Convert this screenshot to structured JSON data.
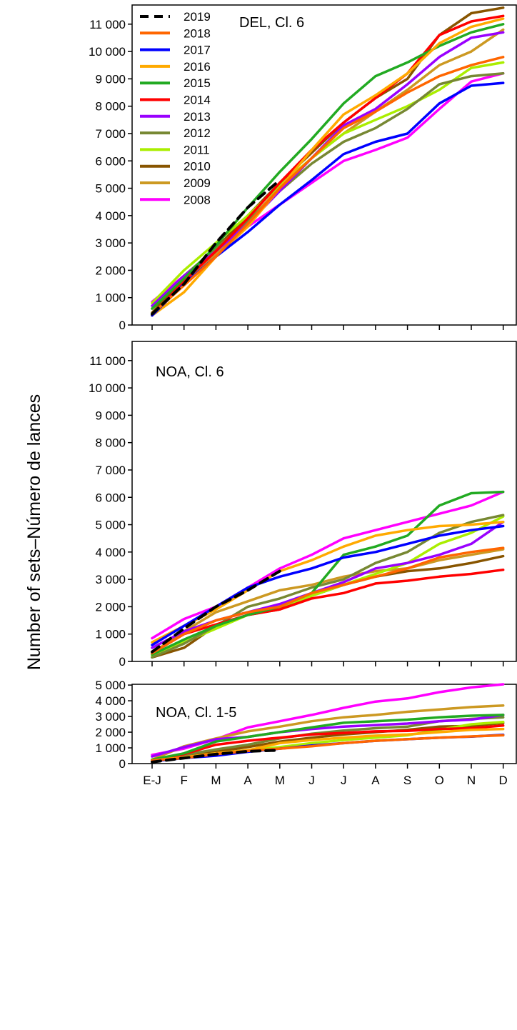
{
  "ylabel": "Number of sets–Número de lances",
  "months": [
    "E-J",
    "F",
    "M",
    "A",
    "M",
    "J",
    "J",
    "A",
    "S",
    "O",
    "N",
    "D"
  ],
  "legend": {
    "placement": "top-left of first panel"
  },
  "chart_data": [
    {
      "type": "line",
      "title": "DEL, Cl. 6",
      "ylim": [
        0,
        11700
      ],
      "yticks": [
        0,
        1000,
        2000,
        3000,
        4000,
        5000,
        6000,
        7000,
        8000,
        9000,
        10000,
        11000
      ],
      "ytick_labels": [
        "0",
        "1 000",
        "2 000",
        "3 000",
        "4 000",
        "5 000",
        "6 000",
        "7 000",
        "8 000",
        "9 000",
        "10 000",
        "11 000"
      ],
      "series": [
        {
          "name": "2019",
          "color": "#000000",
          "dash": true,
          "values": [
            400,
            1500,
            3000,
            4300,
            5300
          ]
        },
        {
          "name": "2018",
          "color": "#FF6600",
          "values": [
            400,
            1450,
            2500,
            3700,
            5000,
            6100,
            7200,
            7800,
            8500,
            9100,
            9500,
            9800
          ]
        },
        {
          "name": "2017",
          "color": "#0000FF",
          "values": [
            350,
            1500,
            2500,
            3400,
            4400,
            5300,
            6250,
            6700,
            7000,
            8100,
            8750,
            8850
          ]
        },
        {
          "name": "2016",
          "color": "#FFAA00",
          "values": [
            350,
            1200,
            2500,
            3600,
            5000,
            6400,
            7700,
            8400,
            9200,
            10300,
            10900,
            11200
          ]
        },
        {
          "name": "2015",
          "color": "#22AA22",
          "values": [
            600,
            1700,
            2900,
            4300,
            5600,
            6800,
            8100,
            9100,
            9600,
            10200,
            10700,
            11000
          ]
        },
        {
          "name": "2014",
          "color": "#FF0000",
          "values": [
            350,
            1600,
            2700,
            3900,
            5200,
            6400,
            7400,
            8300,
            9200,
            10600,
            11100,
            11300
          ]
        },
        {
          "name": "2013",
          "color": "#9900FF",
          "values": [
            700,
            1800,
            2700,
            3700,
            4900,
            6100,
            7300,
            7900,
            8800,
            9800,
            10500,
            10700
          ]
        },
        {
          "name": "2012",
          "color": "#778833",
          "values": [
            600,
            1800,
            2800,
            3800,
            4900,
            5900,
            6700,
            7200,
            7900,
            8800,
            9100,
            9200
          ]
        },
        {
          "name": "2011",
          "color": "#AAEE00",
          "values": [
            800,
            2000,
            3000,
            4000,
            5100,
            6100,
            7000,
            7500,
            8000,
            8600,
            9400,
            9600
          ]
        },
        {
          "name": "2010",
          "color": "#885500",
          "values": [
            450,
            1700,
            2800,
            4000,
            5200,
            6300,
            7400,
            8300,
            9000,
            10600,
            11400,
            11600
          ]
        },
        {
          "name": "2009",
          "color": "#CC9922",
          "values": [
            350,
            1500,
            2600,
            3800,
            5000,
            6100,
            7000,
            7800,
            8600,
            9500,
            10000,
            10800
          ]
        },
        {
          "name": "2008",
          "color": "#FF00FF",
          "values": [
            850,
            1800,
            2700,
            3600,
            4400,
            5200,
            6000,
            6400,
            6850,
            7900,
            8900,
            9200
          ]
        }
      ]
    },
    {
      "type": "line",
      "title": "NOA, Cl. 6",
      "ylim": [
        0,
        11700
      ],
      "yticks": [
        0,
        1000,
        2000,
        3000,
        4000,
        5000,
        6000,
        7000,
        8000,
        9000,
        10000,
        11000
      ],
      "ytick_labels": [
        "0",
        "1 000",
        "2 000",
        "3 000",
        "4 000",
        "5 000",
        "6 000",
        "7 000",
        "8 000",
        "9 000",
        "10 000",
        "11 000"
      ],
      "series": [
        {
          "name": "2019",
          "color": "#000000",
          "dash": true,
          "values": [
            350,
            1200,
            2000,
            2600,
            3300
          ]
        },
        {
          "name": "2018",
          "color": "#FF6600",
          "values": [
            300,
            1000,
            1500,
            1800,
            2000,
            2500,
            2800,
            3100,
            3400,
            3800,
            4000,
            4150
          ]
        },
        {
          "name": "2017",
          "color": "#0000FF",
          "values": [
            600,
            1300,
            2000,
            2700,
            3100,
            3400,
            3800,
            4000,
            4300,
            4600,
            4800,
            4950
          ]
        },
        {
          "name": "2016",
          "color": "#FFAA00",
          "values": [
            700,
            1300,
            1900,
            2600,
            3300,
            3700,
            4200,
            4600,
            4800,
            4950,
            5000,
            5100
          ]
        },
        {
          "name": "2015",
          "color": "#22AA22",
          "values": [
            250,
            800,
            1300,
            1700,
            2000,
            2500,
            3900,
            4200,
            4600,
            5700,
            6150,
            6200
          ]
        },
        {
          "name": "2014",
          "color": "#FF0000",
          "values": [
            300,
            1000,
            1350,
            1700,
            1900,
            2300,
            2500,
            2850,
            2950,
            3100,
            3200,
            3350
          ]
        },
        {
          "name": "2013",
          "color": "#9900FF",
          "values": [
            500,
            1100,
            1500,
            1800,
            2100,
            2500,
            2900,
            3400,
            3600,
            3900,
            4300,
            5100
          ]
        },
        {
          "name": "2012",
          "color": "#778833",
          "values": [
            150,
            650,
            1300,
            2000,
            2300,
            2700,
            3000,
            3600,
            4000,
            4700,
            5100,
            5350
          ]
        },
        {
          "name": "2011",
          "color": "#AAEE00",
          "values": [
            200,
            700,
            1200,
            1700,
            2000,
            2400,
            2800,
            3200,
            3600,
            4300,
            4700,
            5300
          ]
        },
        {
          "name": "2010",
          "color": "#885500",
          "values": [
            150,
            500,
            1300,
            1700,
            1900,
            2400,
            2800,
            3100,
            3300,
            3400,
            3600,
            3850
          ]
        },
        {
          "name": "2009",
          "color": "#CC9922",
          "values": [
            300,
            1100,
            1800,
            2200,
            2600,
            2800,
            3100,
            3300,
            3400,
            3700,
            3900,
            4100
          ]
        },
        {
          "name": "2008",
          "color": "#FF00FF",
          "values": [
            850,
            1550,
            2000,
            2700,
            3400,
            3900,
            4500,
            4800,
            5100,
            5400,
            5700,
            6200
          ]
        }
      ]
    },
    {
      "type": "line",
      "title": "NOA, Cl. 1-5",
      "ylim": [
        0,
        5050
      ],
      "yticks": [
        0,
        1000,
        2000,
        3000,
        4000,
        5000
      ],
      "ytick_labels": [
        "0",
        "1 000",
        "2 000",
        "3 000",
        "4 000",
        "5 000"
      ],
      "series": [
        {
          "name": "2019",
          "color": "#000000",
          "dash": true,
          "values": [
            100,
            350,
            600,
            780,
            850
          ]
        },
        {
          "name": "2018",
          "color": "#FF6600",
          "values": [
            200,
            350,
            600,
            800,
            950,
            1100,
            1300,
            1450,
            1550,
            1650,
            1730,
            1800
          ]
        },
        {
          "name": "2017",
          "color": "#0000FF",
          "values": [
            150,
            350,
            500,
            750,
            950,
            1150,
            1300,
            1450,
            1550,
            1650,
            1720,
            1830
          ]
        },
        {
          "name": "2016",
          "color": "#FFAA00",
          "values": [
            200,
            400,
            650,
            850,
            1300,
            1500,
            1650,
            1780,
            1850,
            2000,
            2150,
            2200
          ]
        },
        {
          "name": "2015",
          "color": "#22AA22",
          "values": [
            250,
            650,
            1400,
            1700,
            2000,
            2300,
            2600,
            2700,
            2800,
            2950,
            3050,
            3100
          ]
        },
        {
          "name": "2014",
          "color": "#FF0000",
          "values": [
            150,
            600,
            1200,
            1450,
            1650,
            1850,
            1950,
            2050,
            2080,
            2200,
            2250,
            2420
          ]
        },
        {
          "name": "2013",
          "color": "#9900FF",
          "values": [
            450,
            1050,
            1550,
            1700,
            2000,
            2200,
            2350,
            2450,
            2550,
            2700,
            2800,
            3100
          ]
        },
        {
          "name": "2012",
          "color": "#778833",
          "values": [
            200,
            550,
            900,
            1200,
            1600,
            1900,
            2100,
            2250,
            2350,
            2700,
            2850,
            2950
          ]
        },
        {
          "name": "2011",
          "color": "#AAEE00",
          "values": [
            200,
            400,
            650,
            850,
            1050,
            1300,
            1500,
            1650,
            1800,
            2150,
            2500,
            2650
          ]
        },
        {
          "name": "2010",
          "color": "#885500",
          "values": [
            150,
            450,
            750,
            1050,
            1400,
            1650,
            1850,
            2000,
            2150,
            2350,
            2400,
            2580
          ]
        },
        {
          "name": "2009",
          "color": "#CC9922",
          "values": [
            250,
            1100,
            1600,
            2050,
            2350,
            2700,
            2950,
            3100,
            3300,
            3450,
            3600,
            3700
          ]
        },
        {
          "name": "2008",
          "color": "#FF00FF",
          "values": [
            550,
            950,
            1550,
            2300,
            2700,
            3100,
            3550,
            3950,
            4150,
            4550,
            4850,
            5050
          ]
        }
      ]
    }
  ]
}
